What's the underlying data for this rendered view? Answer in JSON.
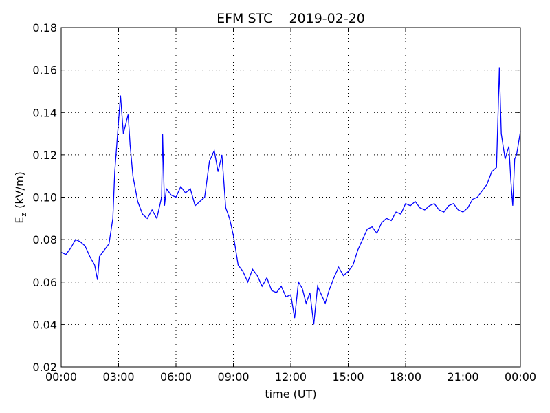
{
  "chart_data": {
    "type": "line",
    "title": "EFM STC    2019-02-20",
    "xlabel": "time (UT)",
    "ylabel": [
      "E",
      "z",
      "(kV/m)"
    ],
    "x": [
      0,
      0.25,
      0.5,
      0.75,
      1,
      1.25,
      1.5,
      1.75,
      1.9,
      2,
      2.25,
      2.5,
      2.7,
      2.8,
      3,
      3.1,
      3.25,
      3.5,
      3.6,
      3.75,
      4,
      4.25,
      4.5,
      4.75,
      5,
      5.25,
      5.3,
      5.4,
      5.5,
      5.75,
      6,
      6.25,
      6.5,
      6.75,
      7,
      7.25,
      7.5,
      7.75,
      8,
      8.2,
      8.4,
      8.6,
      8.8,
      9,
      9.25,
      9.5,
      9.75,
      10,
      10.25,
      10.5,
      10.75,
      11,
      11.25,
      11.5,
      11.75,
      12,
      12.2,
      12.4,
      12.6,
      12.8,
      13,
      13.2,
      13.4,
      13.6,
      13.8,
      14,
      14.25,
      14.5,
      14.75,
      15,
      15.25,
      15.5,
      15.75,
      16,
      16.25,
      16.5,
      16.75,
      17,
      17.25,
      17.5,
      17.75,
      18,
      18.25,
      18.5,
      18.75,
      19,
      19.25,
      19.5,
      19.75,
      20,
      20.25,
      20.5,
      20.75,
      21,
      21.25,
      21.5,
      21.75,
      22,
      22.25,
      22.5,
      22.75,
      22.85,
      22.9,
      23,
      23.2,
      23.4,
      23.5,
      23.6,
      23.7,
      23.8,
      24
    ],
    "series": [
      {
        "name": "Ez",
        "color": "#0000ff",
        "values": [
          0.074,
          0.073,
          0.076,
          0.08,
          0.079,
          0.077,
          0.072,
          0.068,
          0.061,
          0.072,
          0.075,
          0.078,
          0.09,
          0.112,
          0.136,
          0.148,
          0.13,
          0.139,
          0.125,
          0.11,
          0.098,
          0.092,
          0.09,
          0.094,
          0.09,
          0.1,
          0.13,
          0.096,
          0.104,
          0.101,
          0.1,
          0.105,
          0.102,
          0.104,
          0.096,
          0.098,
          0.1,
          0.117,
          0.122,
          0.112,
          0.12,
          0.095,
          0.09,
          0.082,
          0.068,
          0.065,
          0.06,
          0.066,
          0.063,
          0.058,
          0.062,
          0.056,
          0.055,
          0.058,
          0.053,
          0.054,
          0.043,
          0.06,
          0.057,
          0.05,
          0.055,
          0.04,
          0.058,
          0.054,
          0.05,
          0.056,
          0.062,
          0.067,
          0.063,
          0.065,
          0.068,
          0.075,
          0.08,
          0.085,
          0.086,
          0.083,
          0.088,
          0.09,
          0.089,
          0.093,
          0.092,
          0.097,
          0.096,
          0.098,
          0.095,
          0.094,
          0.096,
          0.097,
          0.094,
          0.093,
          0.096,
          0.097,
          0.094,
          0.093,
          0.095,
          0.099,
          0.1,
          0.103,
          0.106,
          0.112,
          0.114,
          0.145,
          0.161,
          0.13,
          0.118,
          0.124,
          0.108,
          0.096,
          0.118,
          0.12,
          0.131
        ]
      }
    ],
    "xlim": [
      0,
      24
    ],
    "ylim": [
      0.02,
      0.18
    ],
    "xticks": [
      {
        "value": 0,
        "label": "00:00"
      },
      {
        "value": 3,
        "label": "03:00"
      },
      {
        "value": 6,
        "label": "06:00"
      },
      {
        "value": 9,
        "label": "09:00"
      },
      {
        "value": 12,
        "label": "12:00"
      },
      {
        "value": 15,
        "label": "15:00"
      },
      {
        "value": 18,
        "label": "18:00"
      },
      {
        "value": 21,
        "label": "21:00"
      },
      {
        "value": 24,
        "label": "00:00"
      }
    ],
    "yticks": [
      {
        "value": 0.02,
        "label": "0.02"
      },
      {
        "value": 0.04,
        "label": "0.04"
      },
      {
        "value": 0.06,
        "label": "0.06"
      },
      {
        "value": 0.08,
        "label": "0.08"
      },
      {
        "value": 0.1,
        "label": "0.10"
      },
      {
        "value": 0.12,
        "label": "0.12"
      },
      {
        "value": 0.14,
        "label": "0.14"
      },
      {
        "value": 0.16,
        "label": "0.16"
      },
      {
        "value": 0.18,
        "label": "0.18"
      }
    ],
    "grid": true
  }
}
